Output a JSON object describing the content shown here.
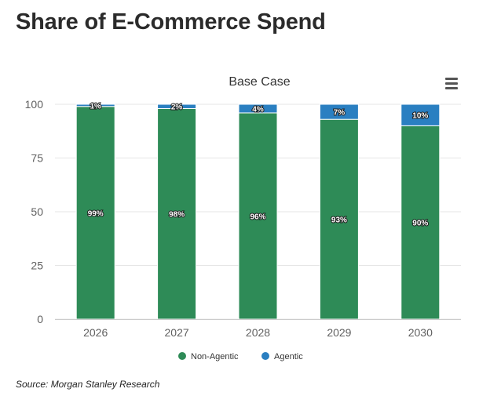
{
  "header": {
    "title": "Share of E-Commerce Spend"
  },
  "menu": {
    "icon": "hamburger-menu-icon"
  },
  "colors": {
    "non_agentic": "#2e8b57",
    "agentic": "#2a7fc1",
    "grid": "#e6e6e6",
    "axis_text": "#606060",
    "title_text": "#333333"
  },
  "chart_data": {
    "type": "bar",
    "stacked": true,
    "title": "Base Case",
    "xlabel": "",
    "ylabel": "",
    "ylim": [
      0,
      100
    ],
    "yticks": [
      0,
      25,
      50,
      75,
      100
    ],
    "categories": [
      "2026",
      "2027",
      "2028",
      "2029",
      "2030"
    ],
    "series": [
      {
        "name": "Non-Agentic",
        "values": [
          99,
          98,
          96,
          93,
          90
        ],
        "labels": [
          "99%",
          "98%",
          "96%",
          "93%",
          "90%"
        ]
      },
      {
        "name": "Agentic",
        "values": [
          1,
          2,
          4,
          7,
          10
        ],
        "labels": [
          "1%",
          "2%",
          "4%",
          "7%",
          "10%"
        ]
      }
    ],
    "legend": "bottom",
    "grid": true
  },
  "footer": {
    "source": "Source: Morgan Stanley Research"
  }
}
